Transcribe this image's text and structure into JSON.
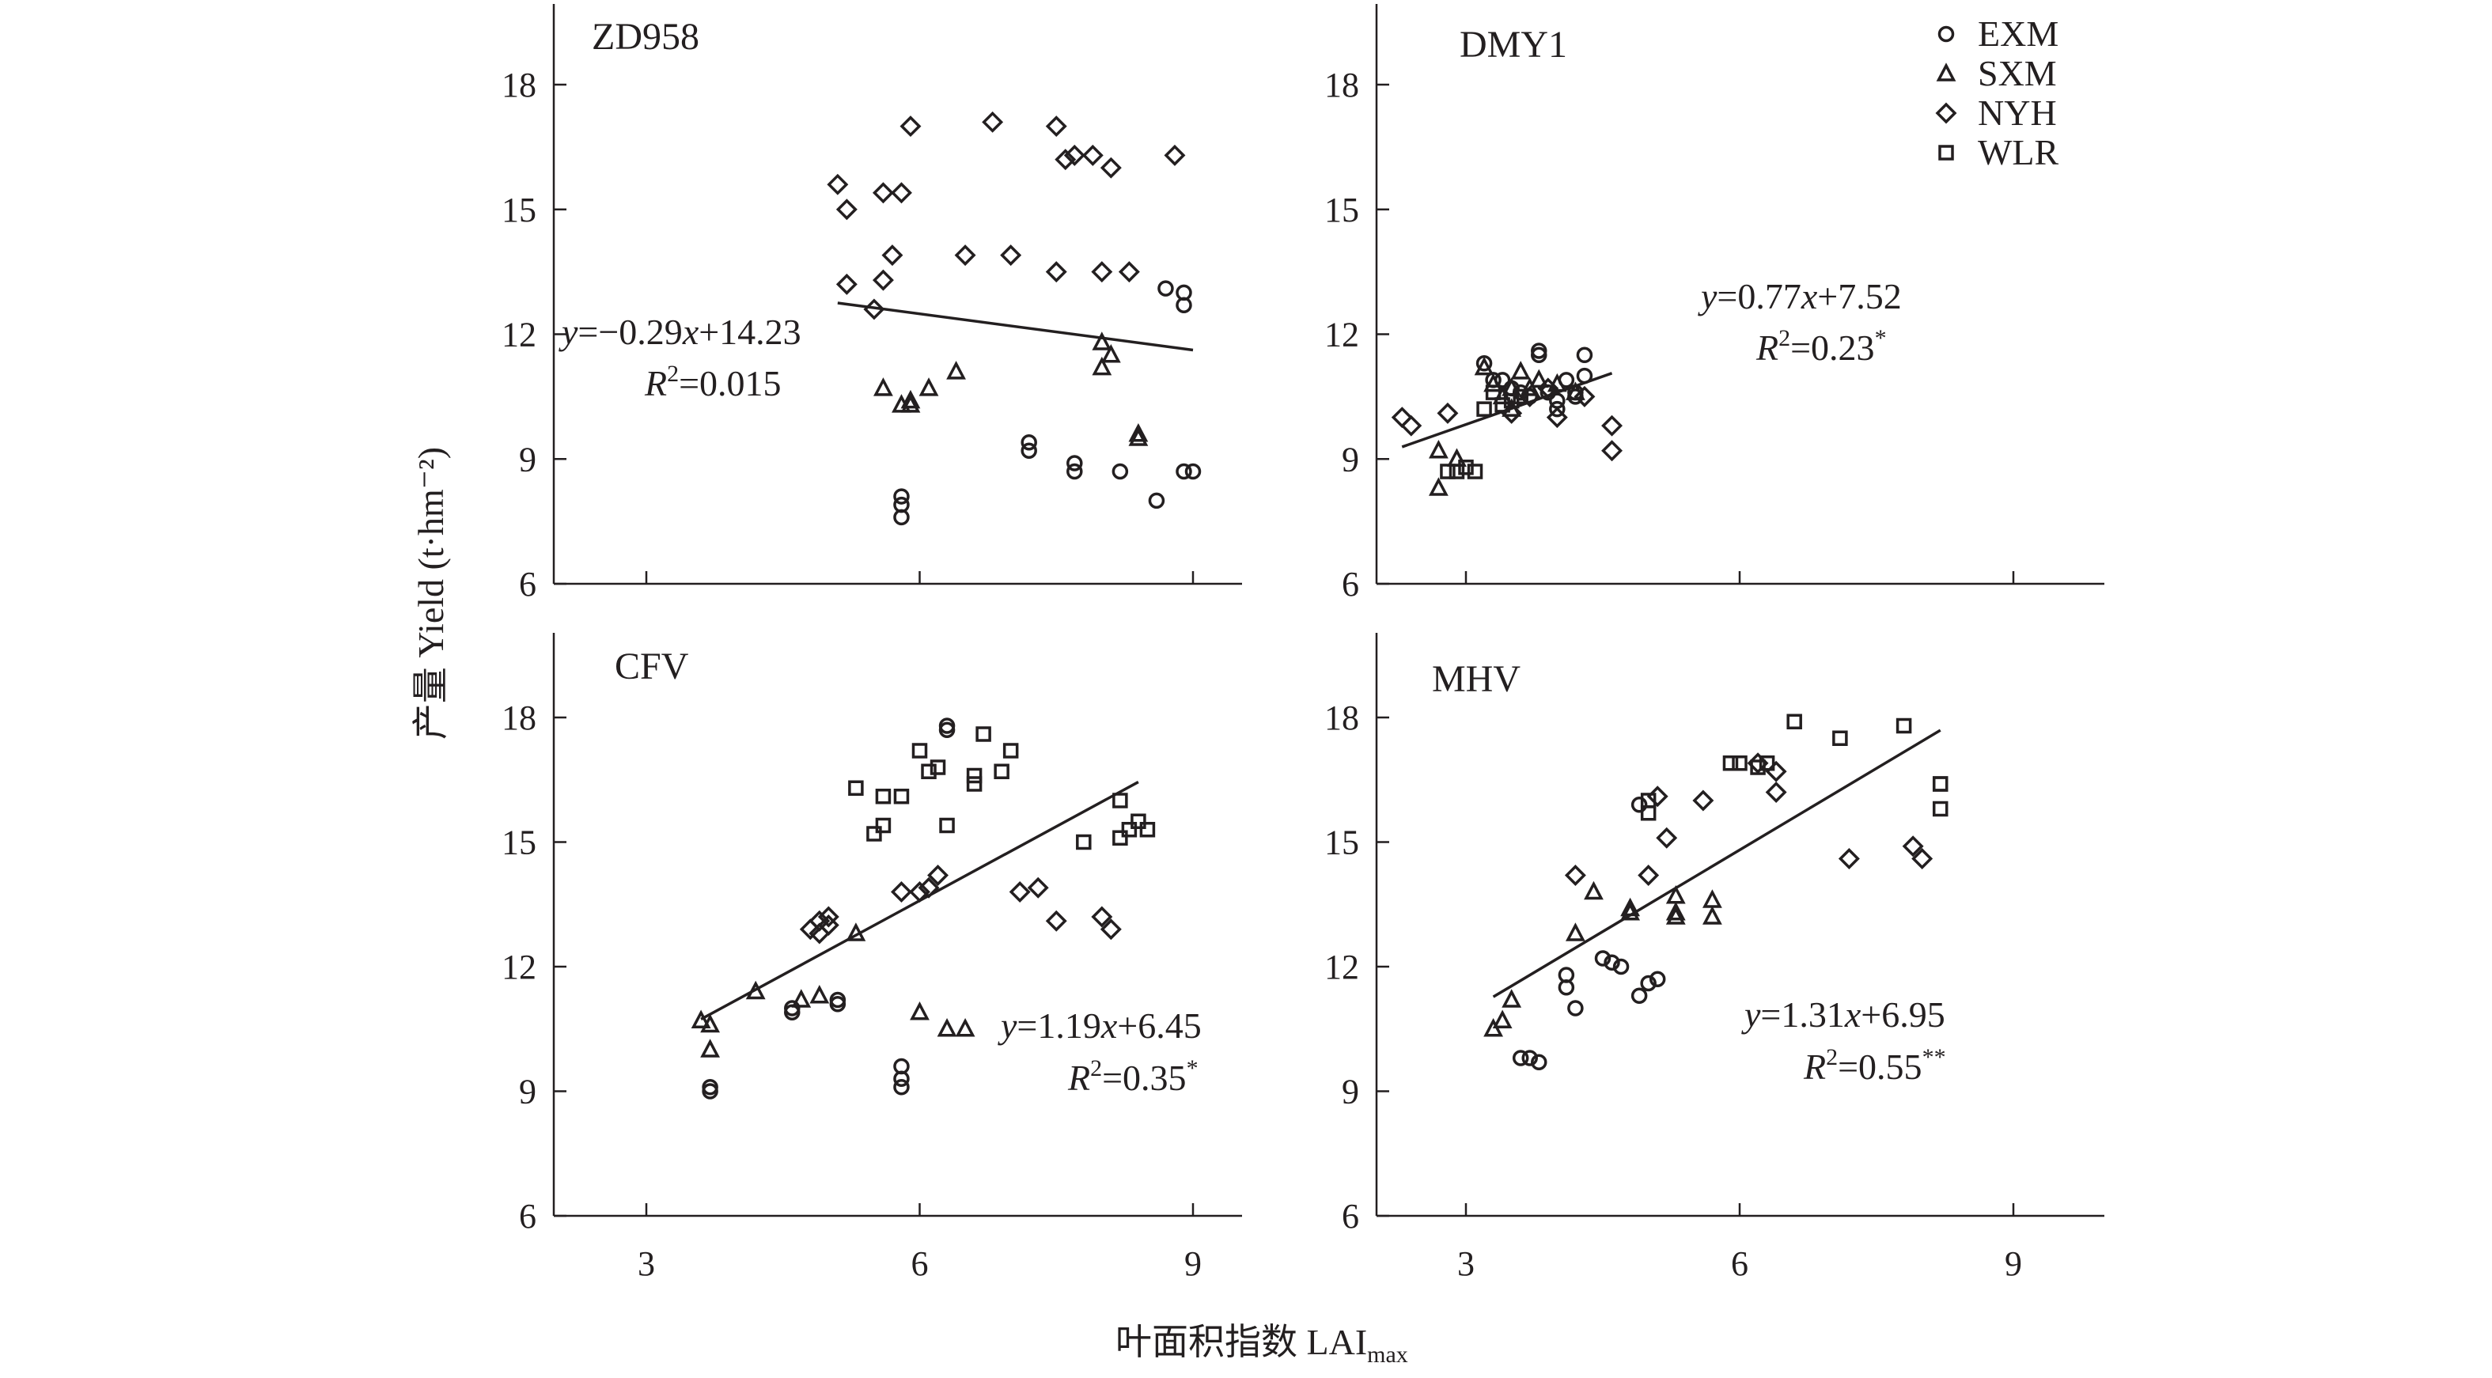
{
  "figure": {
    "ylabel": "产量 Yield (t·hm⁻²)",
    "xlabel": "叶面积指数 LAI",
    "xlabel_sub": "max",
    "legend": [
      {
        "name": "EXM",
        "marker": "circle"
      },
      {
        "name": "SXM",
        "marker": "triangle"
      },
      {
        "name": "NYH",
        "marker": "diamond"
      },
      {
        "name": "WLR",
        "marker": "square"
      }
    ]
  },
  "chart_data": [
    {
      "type": "scatter",
      "title": "ZD958",
      "xlim": [
        2,
        10
      ],
      "ylim": [
        6,
        20
      ],
      "xticks": [
        3,
        6,
        9
      ],
      "yticks": [
        6,
        9,
        12,
        15,
        18
      ],
      "show_xtick_labels": false,
      "equation": "y=−0.29x+14.23",
      "r2": "R²=0.015",
      "fit": {
        "slope": -0.29,
        "intercept": 14.23,
        "x_range": [
          5.1,
          9.0
        ]
      },
      "series": [
        {
          "name": "EXM",
          "points": [
            [
              5.8,
              8.1
            ],
            [
              5.8,
              7.9
            ],
            [
              5.8,
              7.6
            ],
            [
              7.2,
              9.4
            ],
            [
              7.2,
              9.2
            ],
            [
              7.7,
              8.9
            ],
            [
              7.7,
              8.7
            ],
            [
              8.2,
              8.7
            ],
            [
              8.6,
              8.0
            ],
            [
              8.9,
              8.7
            ],
            [
              9.0,
              8.7
            ],
            [
              8.7,
              13.1
            ],
            [
              8.9,
              13.0
            ],
            [
              8.9,
              12.7
            ]
          ]
        },
        {
          "name": "SXM",
          "points": [
            [
              5.6,
              10.7
            ],
            [
              5.8,
              10.3
            ],
            [
              5.9,
              10.3
            ],
            [
              5.9,
              10.4
            ],
            [
              6.1,
              10.7
            ],
            [
              6.4,
              11.1
            ],
            [
              8.0,
              11.2
            ],
            [
              8.0,
              11.8
            ],
            [
              8.1,
              11.5
            ],
            [
              8.4,
              9.6
            ],
            [
              8.4,
              9.5
            ]
          ]
        },
        {
          "name": "NYH",
          "points": [
            [
              5.1,
              15.6
            ],
            [
              5.2,
              15.0
            ],
            [
              5.2,
              13.2
            ],
            [
              5.5,
              12.6
            ],
            [
              5.6,
              15.4
            ],
            [
              5.6,
              13.3
            ],
            [
              5.7,
              13.9
            ],
            [
              5.8,
              15.4
            ],
            [
              5.9,
              17.0
            ],
            [
              6.5,
              13.9
            ],
            [
              6.8,
              17.1
            ],
            [
              7.0,
              13.9
            ],
            [
              7.5,
              17.0
            ],
            [
              7.5,
              13.5
            ],
            [
              7.6,
              16.2
            ],
            [
              7.7,
              16.3
            ],
            [
              7.9,
              16.3
            ],
            [
              8.0,
              13.5
            ],
            [
              8.1,
              16.0
            ],
            [
              8.3,
              13.5
            ],
            [
              8.8,
              16.3
            ]
          ]
        },
        {
          "name": "WLR",
          "points": []
        }
      ]
    },
    {
      "type": "scatter",
      "title": "DMY1",
      "xlim": [
        2,
        10
      ],
      "ylim": [
        6,
        20
      ],
      "xticks": [
        3,
        6,
        9
      ],
      "yticks": [
        6,
        9,
        12,
        15,
        18
      ],
      "show_xtick_labels": false,
      "equation": "y=0.77x+7.52",
      "r2": "R²=0.23*",
      "fit": {
        "slope": 0.77,
        "intercept": 7.52,
        "x_range": [
          2.3,
          4.6
        ]
      },
      "series": [
        {
          "name": "EXM",
          "points": [
            [
              3.2,
              11.3
            ],
            [
              3.4,
              10.9
            ],
            [
              3.5,
              10.7
            ],
            [
              3.6,
              10.6
            ],
            [
              3.7,
              10.5
            ],
            [
              3.8,
              11.5
            ],
            [
              3.8,
              11.6
            ],
            [
              3.9,
              10.6
            ],
            [
              4.0,
              10.4
            ],
            [
              4.0,
              10.2
            ],
            [
              4.1,
              10.9
            ],
            [
              4.2,
              10.6
            ],
            [
              4.3,
              11.0
            ],
            [
              4.3,
              11.5
            ],
            [
              4.2,
              10.5
            ],
            [
              3.3,
              10.9
            ]
          ]
        },
        {
          "name": "SXM",
          "points": [
            [
              2.7,
              8.3
            ],
            [
              2.7,
              9.2
            ],
            [
              2.9,
              9.0
            ],
            [
              3.2,
              11.2
            ],
            [
              3.3,
              10.8
            ],
            [
              3.4,
              10.5
            ],
            [
              3.5,
              10.7
            ],
            [
              3.6,
              11.1
            ],
            [
              3.7,
              10.7
            ],
            [
              3.8,
              10.9
            ],
            [
              4.0,
              10.8
            ],
            [
              4.2,
              10.6
            ],
            [
              3.5,
              10.2
            ]
          ]
        },
        {
          "name": "NYH",
          "points": [
            [
              2.3,
              10.0
            ],
            [
              2.4,
              9.8
            ],
            [
              2.8,
              10.1
            ],
            [
              3.5,
              10.1
            ],
            [
              3.7,
              10.5
            ],
            [
              3.9,
              10.7
            ],
            [
              4.0,
              10.0
            ],
            [
              4.6,
              9.2
            ],
            [
              4.6,
              9.8
            ],
            [
              4.3,
              10.5
            ]
          ]
        },
        {
          "name": "WLR",
          "points": [
            [
              2.8,
              8.7
            ],
            [
              2.9,
              8.7
            ],
            [
              3.0,
              8.8
            ],
            [
              3.1,
              8.7
            ],
            [
              3.2,
              10.2
            ],
            [
              3.3,
              10.6
            ],
            [
              3.4,
              10.3
            ],
            [
              3.5,
              10.4
            ],
            [
              3.6,
              10.5
            ]
          ]
        }
      ]
    },
    {
      "type": "scatter",
      "title": "CFV",
      "xlim": [
        2,
        10
      ],
      "ylim": [
        6,
        20
      ],
      "xticks": [
        3,
        6,
        9
      ],
      "yticks": [
        6,
        9,
        12,
        15,
        18
      ],
      "show_xtick_labels": true,
      "equation": "y=1.19x+6.45",
      "r2": "R²=0.35*",
      "fit": {
        "slope": 1.19,
        "intercept": 6.45,
        "x_range": [
          3.6,
          8.4
        ]
      },
      "series": [
        {
          "name": "EXM",
          "points": [
            [
              3.7,
              9.1
            ],
            [
              3.7,
              9.0
            ],
            [
              4.6,
              10.9
            ],
            [
              4.6,
              11.0
            ],
            [
              5.1,
              11.1
            ],
            [
              5.1,
              11.2
            ],
            [
              5.8,
              9.6
            ],
            [
              5.8,
              9.3
            ],
            [
              5.8,
              9.1
            ],
            [
              6.3,
              17.8
            ],
            [
              6.3,
              17.7
            ]
          ]
        },
        {
          "name": "SXM",
          "points": [
            [
              3.6,
              10.7
            ],
            [
              3.7,
              10.6
            ],
            [
              3.7,
              10.0
            ],
            [
              4.2,
              11.4
            ],
            [
              4.7,
              11.2
            ],
            [
              4.9,
              11.3
            ],
            [
              5.3,
              12.8
            ],
            [
              6.0,
              10.9
            ],
            [
              6.3,
              10.5
            ],
            [
              6.5,
              10.5
            ]
          ]
        },
        {
          "name": "NYH",
          "points": [
            [
              4.8,
              12.9
            ],
            [
              4.9,
              12.8
            ],
            [
              4.9,
              13.1
            ],
            [
              5.0,
              13.0
            ],
            [
              5.0,
              13.2
            ],
            [
              5.8,
              13.8
            ],
            [
              6.0,
              13.8
            ],
            [
              6.1,
              13.9
            ],
            [
              6.2,
              14.2
            ],
            [
              7.1,
              13.8
            ],
            [
              7.3,
              13.9
            ],
            [
              7.5,
              13.1
            ],
            [
              8.0,
              13.2
            ],
            [
              8.1,
              12.9
            ]
          ]
        },
        {
          "name": "WLR",
          "points": [
            [
              5.3,
              16.3
            ],
            [
              5.5,
              15.2
            ],
            [
              5.6,
              15.4
            ],
            [
              5.6,
              16.1
            ],
            [
              5.8,
              16.1
            ],
            [
              6.0,
              17.2
            ],
            [
              6.1,
              16.7
            ],
            [
              6.2,
              16.8
            ],
            [
              6.3,
              15.4
            ],
            [
              6.6,
              16.6
            ],
            [
              6.6,
              16.4
            ],
            [
              6.7,
              17.6
            ],
            [
              6.9,
              16.7
            ],
            [
              7.0,
              17.2
            ],
            [
              7.8,
              15.0
            ],
            [
              8.2,
              15.1
            ],
            [
              8.3,
              15.3
            ],
            [
              8.4,
              15.5
            ],
            [
              8.5,
              15.3
            ],
            [
              8.2,
              16.0
            ]
          ]
        }
      ]
    },
    {
      "type": "scatter",
      "title": "MHV",
      "xlim": [
        2,
        10
      ],
      "ylim": [
        6,
        20
      ],
      "xticks": [
        3,
        6,
        9
      ],
      "yticks": [
        6,
        9,
        12,
        15,
        18
      ],
      "show_xtick_labels": true,
      "equation": "y=1.31x+6.95",
      "r2": "R²=0.55**",
      "fit": {
        "slope": 1.31,
        "intercept": 6.95,
        "x_range": [
          3.3,
          8.2
        ]
      },
      "series": [
        {
          "name": "EXM",
          "points": [
            [
              3.6,
              9.8
            ],
            [
              3.7,
              9.8
            ],
            [
              3.8,
              9.7
            ],
            [
              4.1,
              11.8
            ],
            [
              4.1,
              11.5
            ],
            [
              4.2,
              11.0
            ],
            [
              4.5,
              12.2
            ],
            [
              4.6,
              12.1
            ],
            [
              4.7,
              12.0
            ],
            [
              4.9,
              11.3
            ],
            [
              5.0,
              11.6
            ],
            [
              5.1,
              11.7
            ],
            [
              4.9,
              15.9
            ]
          ]
        },
        {
          "name": "SXM",
          "points": [
            [
              3.3,
              10.5
            ],
            [
              3.4,
              10.7
            ],
            [
              3.5,
              11.2
            ],
            [
              4.2,
              12.8
            ],
            [
              4.4,
              13.8
            ],
            [
              4.8,
              13.4
            ],
            [
              4.8,
              13.3
            ],
            [
              5.3,
              13.3
            ],
            [
              5.3,
              13.2
            ],
            [
              5.3,
              13.7
            ],
            [
              5.7,
              13.2
            ],
            [
              5.7,
              13.6
            ]
          ]
        },
        {
          "name": "NYH",
          "points": [
            [
              4.2,
              14.2
            ],
            [
              5.0,
              14.2
            ],
            [
              5.1,
              16.1
            ],
            [
              5.2,
              15.1
            ],
            [
              5.6,
              16.0
            ],
            [
              6.2,
              16.9
            ],
            [
              6.4,
              16.7
            ],
            [
              6.4,
              16.2
            ],
            [
              7.2,
              14.6
            ],
            [
              7.9,
              14.9
            ],
            [
              8.0,
              14.6
            ]
          ]
        },
        {
          "name": "WLR",
          "points": [
            [
              5.0,
              16.0
            ],
            [
              5.0,
              15.7
            ],
            [
              5.9,
              16.9
            ],
            [
              6.0,
              16.9
            ],
            [
              6.2,
              16.8
            ],
            [
              6.3,
              16.9
            ],
            [
              6.6,
              17.9
            ],
            [
              7.1,
              17.5
            ],
            [
              7.8,
              17.8
            ],
            [
              8.2,
              16.4
            ],
            [
              8.2,
              16.4
            ],
            [
              8.2,
              15.8
            ]
          ]
        }
      ]
    }
  ]
}
